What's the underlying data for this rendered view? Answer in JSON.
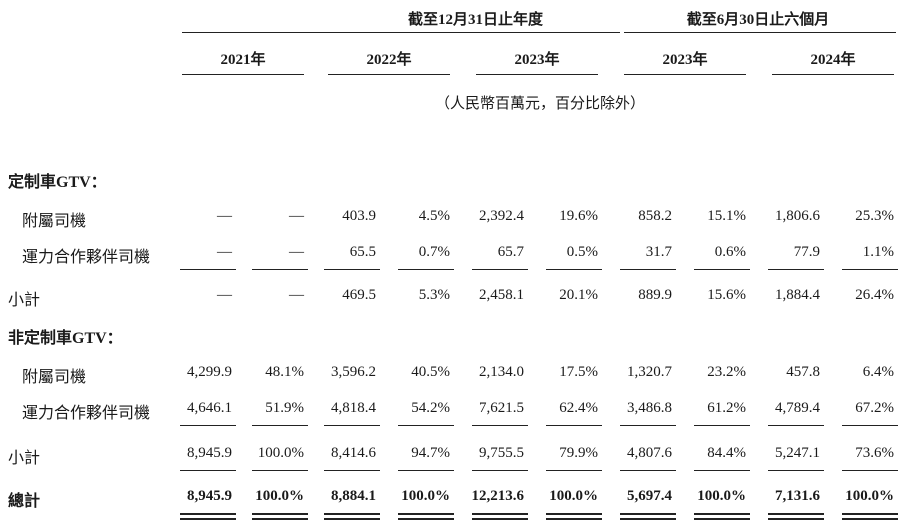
{
  "header": {
    "group_fy": "截至12月31日止年度",
    "group_hy": "截至6月30日止六個月",
    "years": [
      "2021年",
      "2022年",
      "2023年",
      "2023年",
      "2024年"
    ],
    "unit_note": "（人民幣百萬元，百分比除外）"
  },
  "rows": [
    {
      "label": "定制車GTV：",
      "style": "section",
      "values": []
    },
    {
      "label": "附屬司機",
      "style": "indent",
      "values": [
        "—",
        "—",
        "403.9",
        "4.5%",
        "2,392.4",
        "19.6%",
        "858.2",
        "15.1%",
        "1,806.6",
        "25.3%"
      ]
    },
    {
      "label": "運力合作夥伴司機",
      "style": "indent",
      "values": [
        "—",
        "—",
        "65.5",
        "0.7%",
        "65.7",
        "0.5%",
        "31.7",
        "0.6%",
        "77.9",
        "1.1%"
      ]
    },
    {
      "label": "小計",
      "style": "plain",
      "values": [
        "—",
        "—",
        "469.5",
        "5.3%",
        "2,458.1",
        "20.1%",
        "889.9",
        "15.6%",
        "1,884.4",
        "26.4%"
      ]
    },
    {
      "label": "非定制車GTV：",
      "style": "section",
      "values": []
    },
    {
      "label": "附屬司機",
      "style": "indent",
      "values": [
        "4,299.9",
        "48.1%",
        "3,596.2",
        "40.5%",
        "2,134.0",
        "17.5%",
        "1,320.7",
        "23.2%",
        "457.8",
        "6.4%"
      ]
    },
    {
      "label": "運力合作夥伴司機",
      "style": "indent",
      "values": [
        "4,646.1",
        "51.9%",
        "4,818.4",
        "54.2%",
        "7,621.5",
        "62.4%",
        "3,486.8",
        "61.2%",
        "4,789.4",
        "67.2%"
      ]
    },
    {
      "label": "小計",
      "style": "plain",
      "values": [
        "8,945.9",
        "100.0%",
        "8,414.6",
        "94.7%",
        "9,755.5",
        "79.9%",
        "4,807.6",
        "84.4%",
        "5,247.1",
        "73.6%"
      ]
    },
    {
      "label": "總計",
      "style": "total",
      "values": [
        "8,945.9",
        "100.0%",
        "8,884.1",
        "100.0%",
        "12,213.6",
        "100.0%",
        "5,697.4",
        "100.0%",
        "7,131.6",
        "100.0%"
      ]
    }
  ]
}
